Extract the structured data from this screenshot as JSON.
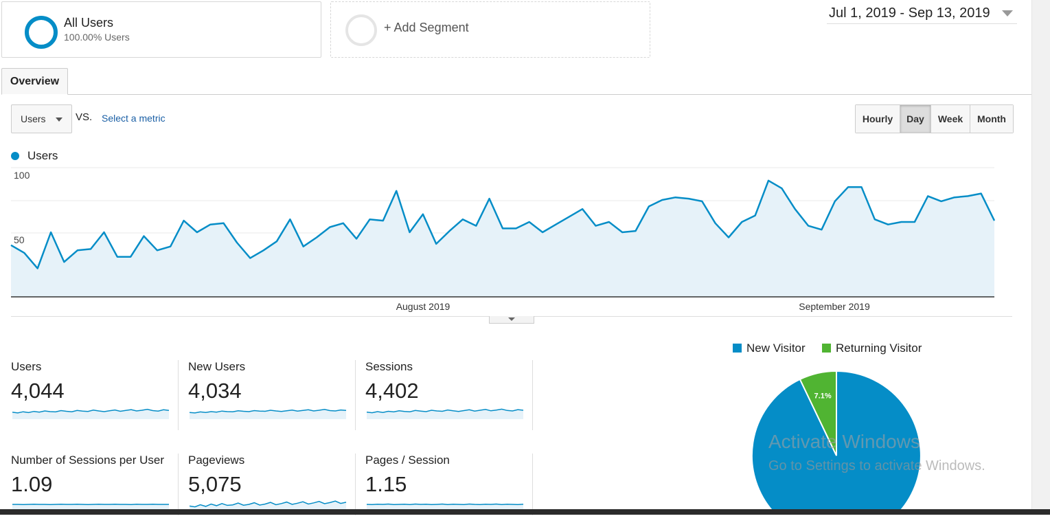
{
  "segments": {
    "all_users": {
      "title": "All Users",
      "subtitle": "100.00% Users"
    },
    "add_segment_label": "+ Add Segment"
  },
  "date_range": "Jul 1, 2019 - Sep 13, 2019",
  "tabs": {
    "overview": "Overview"
  },
  "controls": {
    "metric_selected": "Users",
    "vs_label": "VS.",
    "select_metric_link": "Select a metric",
    "granularity": [
      "Hourly",
      "Day",
      "Week",
      "Month"
    ],
    "granularity_active": "Day"
  },
  "colors": {
    "accent": "#058dc7",
    "returning": "#50b432",
    "link": "#1a5fa5"
  },
  "chart_data": [
    {
      "type": "area",
      "series": [
        {
          "name": "Users",
          "x_start": "2019-07-01",
          "x_end": "2019-09-13",
          "values": [
            40,
            34,
            22,
            50,
            27,
            36,
            37,
            50,
            31,
            31,
            47,
            36,
            39,
            59,
            50,
            56,
            57,
            42,
            30,
            36,
            43,
            60,
            39,
            46,
            54,
            57,
            45,
            60,
            59,
            82,
            50,
            64,
            41,
            51,
            60,
            55,
            76,
            53,
            53,
            58,
            50,
            56,
            62,
            68,
            55,
            58,
            50,
            51,
            70,
            75,
            77,
            76,
            74,
            57,
            46,
            58,
            63,
            90,
            84,
            68,
            55,
            52,
            74,
            85,
            85,
            60,
            56,
            58,
            58,
            78,
            74,
            77,
            78,
            80,
            59
          ]
        }
      ],
      "legend": [
        "Users"
      ],
      "y_ticks": [
        "100",
        "50"
      ],
      "ylim": [
        0,
        100
      ],
      "x_tick_labels": [
        "August 2019",
        "September 2019"
      ],
      "grid": true
    },
    {
      "type": "pie",
      "legend": [
        "New Visitor",
        "Returning Visitor"
      ],
      "slices": [
        {
          "name": "New Visitor",
          "value": 92.9,
          "color": "#058dc7",
          "label": ""
        },
        {
          "name": "Returning Visitor",
          "value": 7.1,
          "color": "#50b432",
          "label": "7.1%"
        }
      ]
    }
  ],
  "metrics": [
    {
      "label": "Users",
      "value": "4,044"
    },
    {
      "label": "New Users",
      "value": "4,034"
    },
    {
      "label": "Sessions",
      "value": "4,402"
    },
    {
      "label": "Number of Sessions per User",
      "value": "1.09"
    },
    {
      "label": "Pageviews",
      "value": "5,075"
    },
    {
      "label": "Pages / Session",
      "value": "1.15"
    }
  ],
  "sparklines": {
    "users": [
      42,
      38,
      45,
      40,
      47,
      43,
      50,
      46,
      44,
      52,
      48,
      45,
      53,
      49,
      47,
      55,
      50,
      46,
      51,
      56,
      48,
      53,
      58,
      50,
      54,
      60,
      52,
      49,
      57,
      53
    ],
    "new_users": [
      41,
      38,
      44,
      41,
      46,
      43,
      49,
      46,
      45,
      51,
      48,
      46,
      52,
      49,
      48,
      54,
      50,
      47,
      51,
      55,
      49,
      53,
      57,
      50,
      54,
      59,
      52,
      50,
      56,
      53
    ],
    "sessions": [
      43,
      39,
      46,
      41,
      48,
      44,
      51,
      47,
      45,
      53,
      49,
      46,
      54,
      50,
      48,
      56,
      51,
      47,
      52,
      57,
      49,
      54,
      59,
      51,
      55,
      61,
      53,
      50,
      58,
      54
    ],
    "sessions_per_user": [
      50,
      50,
      49,
      50,
      51,
      50,
      50,
      49,
      50,
      51,
      50,
      50,
      51,
      50,
      49,
      50,
      51,
      50,
      50,
      51,
      50,
      50,
      49,
      51,
      50,
      50,
      51,
      50,
      50,
      50
    ],
    "pageviews": [
      40,
      35,
      48,
      38,
      52,
      42,
      55,
      44,
      47,
      58,
      45,
      50,
      60,
      46,
      52,
      62,
      48,
      55,
      64,
      50,
      57,
      66,
      52,
      59,
      68,
      54,
      61,
      70,
      56,
      63
    ],
    "pages_per_session": [
      50,
      49,
      51,
      50,
      52,
      49,
      50,
      51,
      49,
      52,
      50,
      51,
      49,
      50,
      52,
      49,
      51,
      50,
      49,
      52,
      50,
      49,
      51,
      50,
      52,
      49,
      51,
      50,
      49,
      51
    ]
  },
  "watermark": {
    "line1": "Activate Windows",
    "line2": "Go to Settings to activate Windows."
  }
}
